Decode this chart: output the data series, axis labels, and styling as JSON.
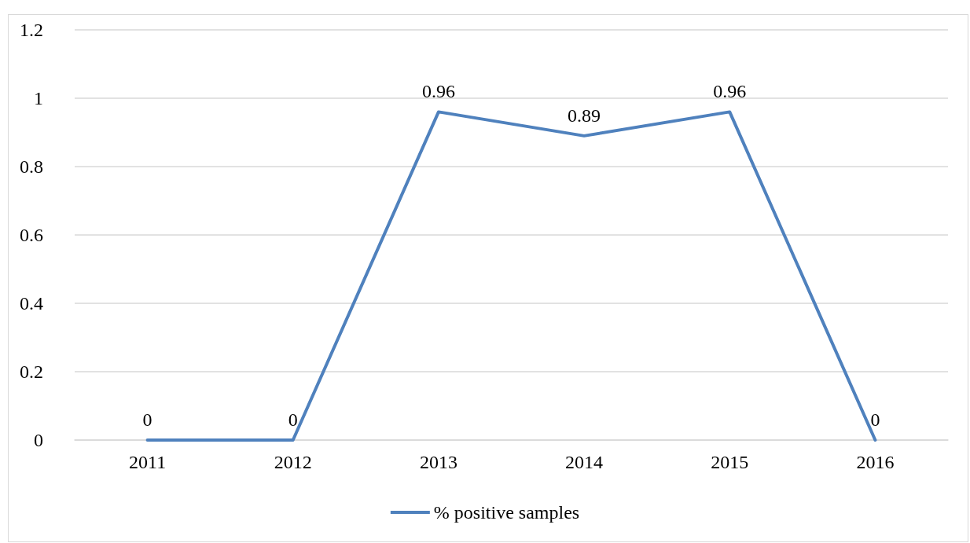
{
  "chart_data": {
    "type": "line",
    "categories": [
      "2011",
      "2012",
      "2013",
      "2014",
      "2015",
      "2016"
    ],
    "series": [
      {
        "name": "% positive samples",
        "color": "#4f81bd",
        "values": [
          0,
          0,
          0.96,
          0.89,
          0.96,
          0
        ]
      }
    ],
    "ylim": [
      0,
      1.2
    ],
    "yticks": [
      0,
      0.2,
      0.4,
      0.6,
      0.8,
      1,
      1.2
    ],
    "grid": "y",
    "legend": "bottom",
    "marker": "none",
    "line_style": "solid",
    "data_labels": true
  }
}
